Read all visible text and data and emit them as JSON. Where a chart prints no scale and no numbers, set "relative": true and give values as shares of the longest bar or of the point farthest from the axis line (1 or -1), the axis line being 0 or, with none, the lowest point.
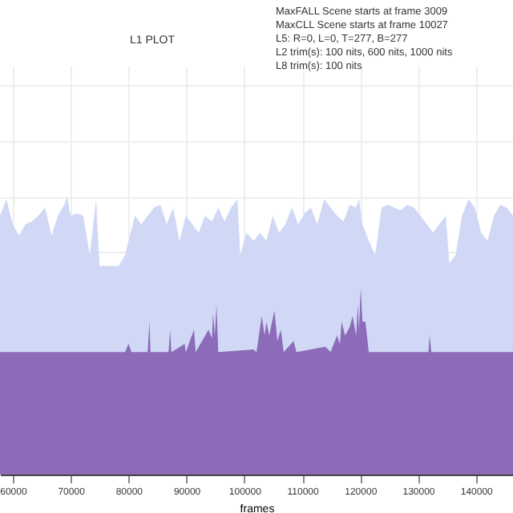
{
  "chart_data": {
    "type": "area",
    "title": "L1 PLOT",
    "xlabel": "frames",
    "relative": true,
    "grid": true,
    "annotations": [
      "MaxFALL Scene starts at frame 3009",
      "MaxCLL Scene starts at frame 10027",
      "L5: R=0, L=0, T=277, B=277",
      "L2 trim(s): 100 nits, 600 nits, 1000 nits",
      "L8 trim(s): 100 nits"
    ],
    "xlim": [
      57800,
      146400
    ],
    "xticks": [
      60000,
      70000,
      80000,
      90000,
      100000,
      110000,
      120000,
      130000,
      140000
    ],
    "series": [
      {
        "color": "#d0d8f5",
        "x": [
          57800,
          58900,
          60000,
          61100,
          62200,
          63300,
          64400,
          65600,
          66700,
          67800,
          68900,
          69400,
          70000,
          71100,
          72200,
          73300,
          74400,
          75000,
          76100,
          77200,
          78300,
          79400,
          80000,
          81100,
          82200,
          83300,
          84400,
          85500,
          86600,
          87700,
          88800,
          89900,
          91000,
          92100,
          93200,
          94400,
          95500,
          96600,
          97700,
          98800,
          99300,
          100400,
          101600,
          102700,
          103800,
          104900,
          106000,
          107100,
          108200,
          109300,
          110400,
          111500,
          112600,
          113800,
          114900,
          116000,
          117100,
          118200,
          119300,
          119800,
          120400,
          121500,
          122600,
          123700,
          124800,
          125900,
          127000,
          128100,
          129300,
          130400,
          131500,
          132600,
          133700,
          134800,
          135400,
          136500,
          137600,
          138700,
          139800,
          140900,
          142000,
          143100,
          144200,
          145300,
          146400
        ],
        "values": [
          0.93,
          0.99,
          0.9,
          0.86,
          0.9,
          0.91,
          0.93,
          0.96,
          0.86,
          0.93,
          0.97,
          1.0,
          0.93,
          0.94,
          0.93,
          0.79,
          0.99,
          0.75,
          0.75,
          0.75,
          0.75,
          0.79,
          0.84,
          0.93,
          0.9,
          0.93,
          0.96,
          0.97,
          0.9,
          0.96,
          0.84,
          0.93,
          0.9,
          0.87,
          0.93,
          0.91,
          0.96,
          0.91,
          0.96,
          0.99,
          0.79,
          0.87,
          0.84,
          0.87,
          0.84,
          0.93,
          0.87,
          0.9,
          0.96,
          0.9,
          0.94,
          0.96,
          0.9,
          0.99,
          0.96,
          0.93,
          0.91,
          0.97,
          0.96,
          0.99,
          0.9,
          0.84,
          0.79,
          0.96,
          0.97,
          0.96,
          0.95,
          0.97,
          0.96,
          0.93,
          0.9,
          0.87,
          0.9,
          0.93,
          0.76,
          0.79,
          0.93,
          0.99,
          0.96,
          0.87,
          0.84,
          0.93,
          0.97,
          0.96,
          0.93
        ]
      },
      {
        "color": "#8c6bb9",
        "x": [
          57800,
          79400,
          80000,
          80500,
          83300,
          83600,
          83800,
          86900,
          87200,
          87400,
          89700,
          89900,
          91300,
          91600,
          93800,
          94400,
          94600,
          94900,
          95200,
          95500,
          101600,
          102100,
          103000,
          103500,
          103800,
          104300,
          105200,
          105700,
          106300,
          106800,
          108500,
          109000,
          114000,
          114900,
          116000,
          116500,
          116800,
          117400,
          118200,
          118700,
          119300,
          119600,
          119800,
          120100,
          120400,
          120900,
          121500,
          131800,
          132000,
          132300,
          146400
        ],
        "values": [
          0.44,
          0.44,
          0.47,
          0.44,
          0.44,
          0.55,
          0.44,
          0.44,
          0.52,
          0.44,
          0.47,
          0.44,
          0.52,
          0.44,
          0.52,
          0.49,
          0.58,
          0.5,
          0.61,
          0.44,
          0.45,
          0.44,
          0.57,
          0.5,
          0.55,
          0.5,
          0.59,
          0.48,
          0.52,
          0.44,
          0.48,
          0.44,
          0.46,
          0.44,
          0.5,
          0.47,
          0.55,
          0.5,
          0.53,
          0.57,
          0.5,
          0.61,
          0.52,
          0.67,
          0.55,
          0.55,
          0.44,
          0.44,
          0.5,
          0.44,
          0.44
        ]
      }
    ]
  }
}
